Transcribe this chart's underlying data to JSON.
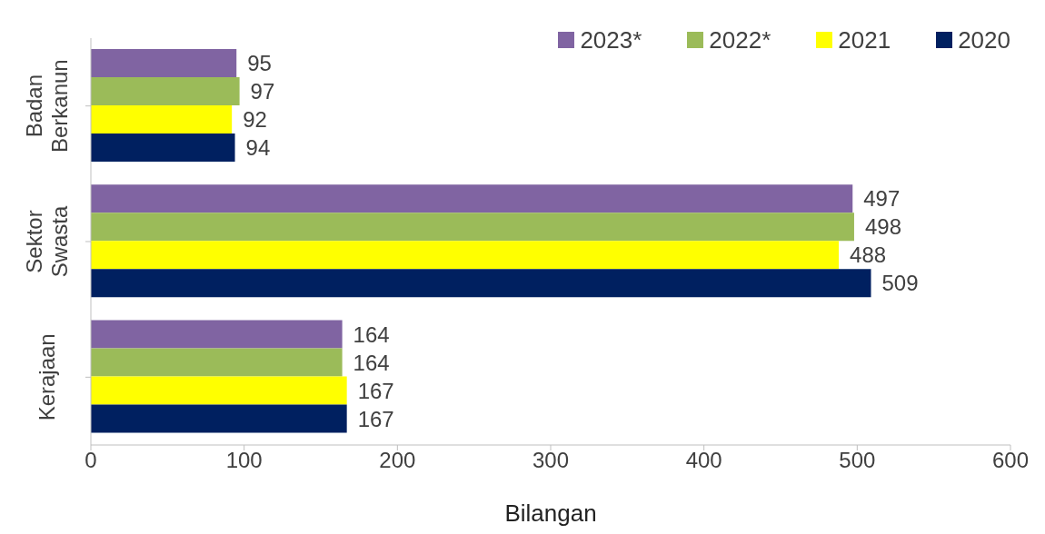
{
  "chart_data": {
    "type": "bar",
    "orientation": "horizontal",
    "categories": [
      "Badan Berkanun",
      "Sektor Swasta",
      "Kerajaan"
    ],
    "series": [
      {
        "name": "2023*",
        "color": "#8064a2",
        "values": [
          95,
          497,
          164
        ]
      },
      {
        "name": "2022*",
        "color": "#9bbb59",
        "values": [
          97,
          498,
          164
        ]
      },
      {
        "name": "2021",
        "color": "#ffff00",
        "values": [
          92,
          488,
          167
        ]
      },
      {
        "name": "2020",
        "color": "#002060",
        "values": [
          94,
          509,
          167
        ]
      }
    ],
    "xlim": [
      0,
      600
    ],
    "xticks": [
      0,
      100,
      200,
      300,
      400,
      500,
      600
    ],
    "xlabel": "Bilangan",
    "grid": false,
    "legend": "top right",
    "data_labels": true
  }
}
